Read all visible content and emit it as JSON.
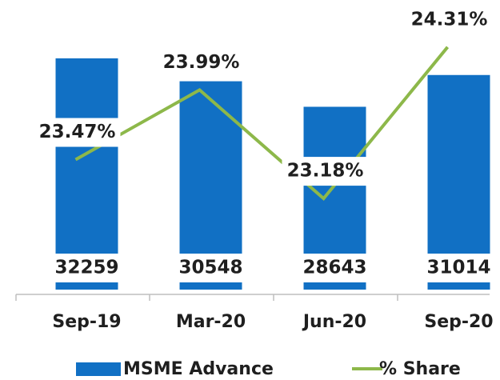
{
  "chart_data": {
    "type": "bar_line",
    "categories": [
      "Sep-19",
      "Mar-20",
      "Jun-20",
      "Sep-20"
    ],
    "series": [
      {
        "name": "MSME Advance",
        "type": "bar",
        "color": "#1170c4",
        "values": [
          32259,
          30548,
          28643,
          31014
        ]
      },
      {
        "name": "% Share",
        "type": "line",
        "axis": "y2",
        "color": "#8db84a",
        "values": [
          23.47,
          23.99,
          23.18,
          24.31
        ],
        "value_labels": [
          "23.47%",
          "23.99%",
          "23.18%",
          "24.31%"
        ]
      }
    ],
    "ylim": [
      15000,
      35000
    ],
    "y2lim": [
      22.5,
      24.5
    ],
    "legend": "bottom"
  }
}
